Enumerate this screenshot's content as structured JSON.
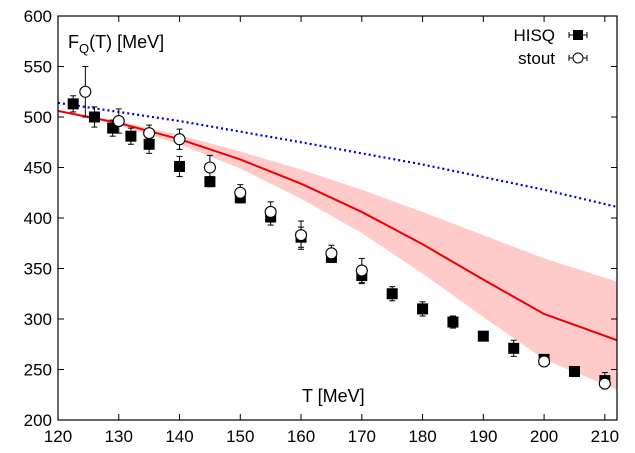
{
  "chart_data": {
    "type": "scatter",
    "ylabel_main": "F",
    "ylabel_sub": "Q",
    "ylabel_rest": "(T) [MeV]",
    "xlabel": "T [MeV]",
    "xlim": [
      120,
      212
    ],
    "ylim": [
      200,
      600
    ],
    "xticks": [
      120,
      130,
      140,
      150,
      160,
      170,
      180,
      190,
      200,
      210
    ],
    "yticks": [
      200,
      250,
      300,
      350,
      400,
      450,
      500,
      550,
      600
    ],
    "grid": false,
    "legend_position": "top-right",
    "series": [
      {
        "name": "HISQ",
        "marker": "filled-square",
        "color": "#000000",
        "points": [
          {
            "x": 122.5,
            "y": 513,
            "err": 8
          },
          {
            "x": 126,
            "y": 500,
            "err": 10
          },
          {
            "x": 129,
            "y": 489,
            "err": 8
          },
          {
            "x": 132,
            "y": 481,
            "err": 8
          },
          {
            "x": 135,
            "y": 473,
            "err": 9
          },
          {
            "x": 140,
            "y": 451,
            "err": 10
          },
          {
            "x": 145,
            "y": 436,
            "err": 5
          },
          {
            "x": 150,
            "y": 420,
            "err": 5
          },
          {
            "x": 155,
            "y": 401,
            "err": 8
          },
          {
            "x": 160,
            "y": 381,
            "err": 10
          },
          {
            "x": 165,
            "y": 361,
            "err": 5
          },
          {
            "x": 170,
            "y": 343,
            "err": 8
          },
          {
            "x": 175,
            "y": 325,
            "err": 7
          },
          {
            "x": 180,
            "y": 310,
            "err": 7
          },
          {
            "x": 185,
            "y": 297,
            "err": 6
          },
          {
            "x": 190,
            "y": 283,
            "err": 4
          },
          {
            "x": 195,
            "y": 271,
            "err": 8
          },
          {
            "x": 200,
            "y": 260,
            "err": 4
          },
          {
            "x": 205,
            "y": 248,
            "err": 4
          },
          {
            "x": 210,
            "y": 239,
            "err": 8
          }
        ]
      },
      {
        "name": "stout",
        "marker": "open-circle",
        "color": "#000000",
        "points": [
          {
            "x": 124.5,
            "y": 525,
            "err": 25
          },
          {
            "x": 130,
            "y": 496,
            "err": 12
          },
          {
            "x": 135,
            "y": 484,
            "err": 8
          },
          {
            "x": 140,
            "y": 478,
            "err": 10
          },
          {
            "x": 145,
            "y": 450,
            "err": 12
          },
          {
            "x": 150,
            "y": 425,
            "err": 8
          },
          {
            "x": 155,
            "y": 406,
            "err": 10
          },
          {
            "x": 160,
            "y": 383,
            "err": 14
          },
          {
            "x": 165,
            "y": 365,
            "err": 8
          },
          {
            "x": 170,
            "y": 348,
            "err": 12
          },
          {
            "x": 200,
            "y": 258,
            "err": 4
          },
          {
            "x": 210,
            "y": 236,
            "err": 4
          }
        ]
      },
      {
        "type": "line",
        "style": "solid",
        "color": "#ee0000",
        "points": [
          [
            120,
            506
          ],
          [
            130,
            494
          ],
          [
            140,
            478
          ],
          [
            150,
            458
          ],
          [
            160,
            434
          ],
          [
            170,
            406
          ],
          [
            180,
            374
          ],
          [
            190,
            339
          ],
          [
            200,
            305
          ],
          [
            212,
            279
          ]
        ]
      },
      {
        "type": "band",
        "color": "#ffb3b3",
        "upper": [
          [
            120,
            507
          ],
          [
            130,
            496
          ],
          [
            140,
            482
          ],
          [
            150,
            466
          ],
          [
            160,
            448
          ],
          [
            170,
            428
          ],
          [
            180,
            406
          ],
          [
            190,
            383
          ],
          [
            200,
            360
          ],
          [
            212,
            337
          ]
        ],
        "lower": [
          [
            120,
            505
          ],
          [
            130,
            492
          ],
          [
            140,
            473
          ],
          [
            150,
            449
          ],
          [
            160,
            419
          ],
          [
            170,
            385
          ],
          [
            180,
            345
          ],
          [
            190,
            302
          ],
          [
            200,
            260
          ],
          [
            212,
            230
          ]
        ]
      },
      {
        "type": "line",
        "style": "dotted",
        "color": "#0000cc",
        "points": [
          [
            120,
            514
          ],
          [
            140,
            496
          ],
          [
            160,
            475
          ],
          [
            180,
            453
          ],
          [
            200,
            428
          ],
          [
            212,
            411
          ]
        ]
      }
    ]
  }
}
